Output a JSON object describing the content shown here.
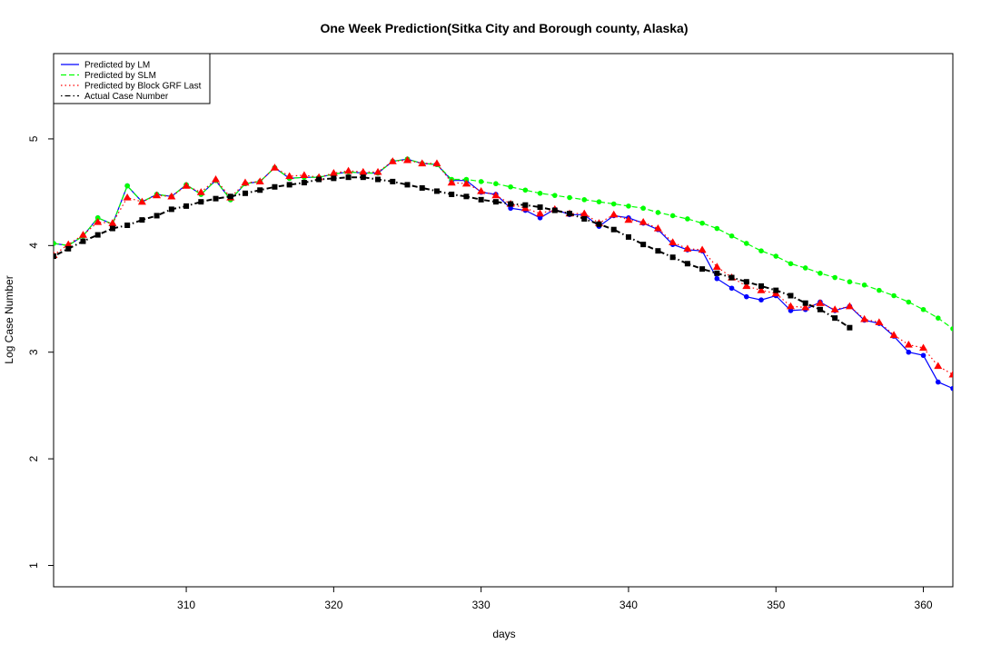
{
  "chart_data": {
    "type": "line",
    "title": "One Week Prediction(Sitka City and Borough county, Alaska)",
    "xlabel": "days",
    "ylabel": "Log Case Number",
    "xlim": [
      301,
      362
    ],
    "ylim": [
      0.8,
      5.8
    ],
    "x_ticks": [
      310,
      320,
      330,
      340,
      350,
      360
    ],
    "y_ticks": [
      1,
      2,
      3,
      4,
      5
    ],
    "legend_position": "top-left",
    "grid": false,
    "series": [
      {
        "name": "Predicted by LM",
        "color": "#0000ff",
        "dash": "solid",
        "marker": "circle",
        "x": [
          301,
          302,
          303,
          304,
          305,
          306,
          307,
          308,
          309,
          310,
          311,
          312,
          313,
          314,
          315,
          316,
          317,
          318,
          319,
          320,
          321,
          322,
          323,
          324,
          325,
          326,
          327,
          328,
          329,
          330,
          331,
          332,
          333,
          334,
          335,
          336,
          337,
          338,
          339,
          340,
          341,
          342,
          343,
          344,
          345,
          346,
          347,
          348,
          349,
          350,
          351,
          352,
          353,
          354,
          355,
          356,
          357,
          358,
          359,
          360,
          361,
          362
        ],
        "values": [
          4.02,
          4.0,
          4.09,
          4.26,
          4.2,
          4.56,
          4.41,
          4.48,
          4.46,
          4.57,
          4.48,
          4.61,
          4.43,
          4.58,
          4.6,
          4.73,
          4.63,
          4.64,
          4.64,
          4.67,
          4.69,
          4.68,
          4.68,
          4.79,
          4.81,
          4.77,
          4.76,
          4.61,
          4.61,
          4.5,
          4.48,
          4.35,
          4.33,
          4.26,
          4.34,
          4.29,
          4.29,
          4.18,
          4.28,
          4.26,
          4.21,
          4.15,
          4.01,
          3.96,
          3.95,
          3.69,
          3.6,
          3.52,
          3.49,
          3.53,
          3.39,
          3.4,
          3.47,
          3.39,
          3.43,
          3.3,
          3.27,
          3.15,
          3.0,
          2.97,
          2.72,
          2.66
        ]
      },
      {
        "name": "Predicted by SLM",
        "color": "#00ff00",
        "dash": "dashed",
        "marker": "circle",
        "x": [
          301,
          302,
          303,
          304,
          305,
          306,
          307,
          308,
          309,
          310,
          311,
          312,
          313,
          314,
          315,
          316,
          317,
          318,
          319,
          320,
          321,
          322,
          323,
          324,
          325,
          326,
          327,
          328,
          329,
          330,
          331,
          332,
          333,
          334,
          335,
          336,
          337,
          338,
          339,
          340,
          341,
          342,
          343,
          344,
          345,
          346,
          347,
          348,
          349,
          350,
          351,
          352,
          353,
          354,
          355,
          356,
          357,
          358,
          359,
          360,
          361,
          362
        ],
        "values": [
          4.02,
          4.0,
          4.09,
          4.26,
          4.2,
          4.56,
          4.41,
          4.48,
          4.46,
          4.57,
          4.48,
          4.61,
          4.43,
          4.58,
          4.6,
          4.73,
          4.63,
          4.64,
          4.64,
          4.67,
          4.69,
          4.68,
          4.68,
          4.79,
          4.81,
          4.77,
          4.76,
          4.62,
          4.62,
          4.6,
          4.58,
          4.55,
          4.52,
          4.49,
          4.47,
          4.45,
          4.43,
          4.41,
          4.39,
          4.37,
          4.35,
          4.31,
          4.28,
          4.25,
          4.21,
          4.16,
          4.09,
          4.02,
          3.95,
          3.9,
          3.83,
          3.79,
          3.74,
          3.7,
          3.66,
          3.63,
          3.58,
          3.53,
          3.47,
          3.4,
          3.32,
          3.22
        ]
      },
      {
        "name": "Predicted by Block GRF Last",
        "color": "#ff0000",
        "dash": "dotted",
        "marker": "triangle",
        "x": [
          301,
          302,
          303,
          304,
          305,
          306,
          307,
          308,
          309,
          310,
          311,
          312,
          313,
          314,
          315,
          316,
          317,
          318,
          319,
          320,
          321,
          322,
          323,
          324,
          325,
          326,
          327,
          328,
          329,
          330,
          331,
          332,
          333,
          334,
          335,
          336,
          337,
          338,
          339,
          340,
          341,
          342,
          343,
          344,
          345,
          346,
          347,
          348,
          349,
          350,
          351,
          352,
          353,
          354,
          355,
          356,
          357,
          358,
          359,
          360,
          361,
          362
        ],
        "values": [
          3.91,
          4.01,
          4.1,
          4.22,
          4.21,
          4.45,
          4.41,
          4.47,
          4.46,
          4.56,
          4.5,
          4.62,
          4.45,
          4.59,
          4.6,
          4.73,
          4.65,
          4.66,
          4.64,
          4.68,
          4.7,
          4.69,
          4.69,
          4.79,
          4.8,
          4.77,
          4.77,
          4.59,
          4.58,
          4.51,
          4.47,
          4.39,
          4.35,
          4.3,
          4.34,
          4.3,
          4.3,
          4.21,
          4.29,
          4.24,
          4.22,
          4.16,
          4.03,
          3.97,
          3.96,
          3.8,
          3.7,
          3.62,
          3.58,
          3.55,
          3.43,
          3.42,
          3.46,
          3.4,
          3.43,
          3.31,
          3.28,
          3.16,
          3.07,
          3.04,
          2.87,
          2.79
        ]
      },
      {
        "name": "Actual Case Number",
        "color": "#000000",
        "dash": "dotdash",
        "marker": "square",
        "x": [
          301,
          302,
          303,
          304,
          305,
          306,
          307,
          308,
          309,
          310,
          311,
          312,
          313,
          314,
          315,
          316,
          317,
          318,
          319,
          320,
          321,
          322,
          323,
          324,
          325,
          326,
          327,
          328,
          329,
          330,
          331,
          332,
          333,
          334,
          335,
          336,
          337,
          338,
          339,
          340,
          341,
          342,
          343,
          344,
          345,
          346,
          347,
          348,
          349,
          350,
          351,
          352,
          353,
          354,
          355
        ],
        "values": [
          3.9,
          3.97,
          4.04,
          4.1,
          4.16,
          4.19,
          4.24,
          4.28,
          4.34,
          4.37,
          4.41,
          4.44,
          4.46,
          4.49,
          4.52,
          4.55,
          4.57,
          4.59,
          4.62,
          4.63,
          4.64,
          4.64,
          4.62,
          4.6,
          4.57,
          4.54,
          4.51,
          4.48,
          4.46,
          4.43,
          4.41,
          4.39,
          4.38,
          4.36,
          4.33,
          4.3,
          4.25,
          4.2,
          4.15,
          4.08,
          4.01,
          3.95,
          3.89,
          3.83,
          3.78,
          3.74,
          3.7,
          3.66,
          3.62,
          3.58,
          3.53,
          3.46,
          3.4,
          3.32,
          3.23
        ]
      }
    ]
  }
}
